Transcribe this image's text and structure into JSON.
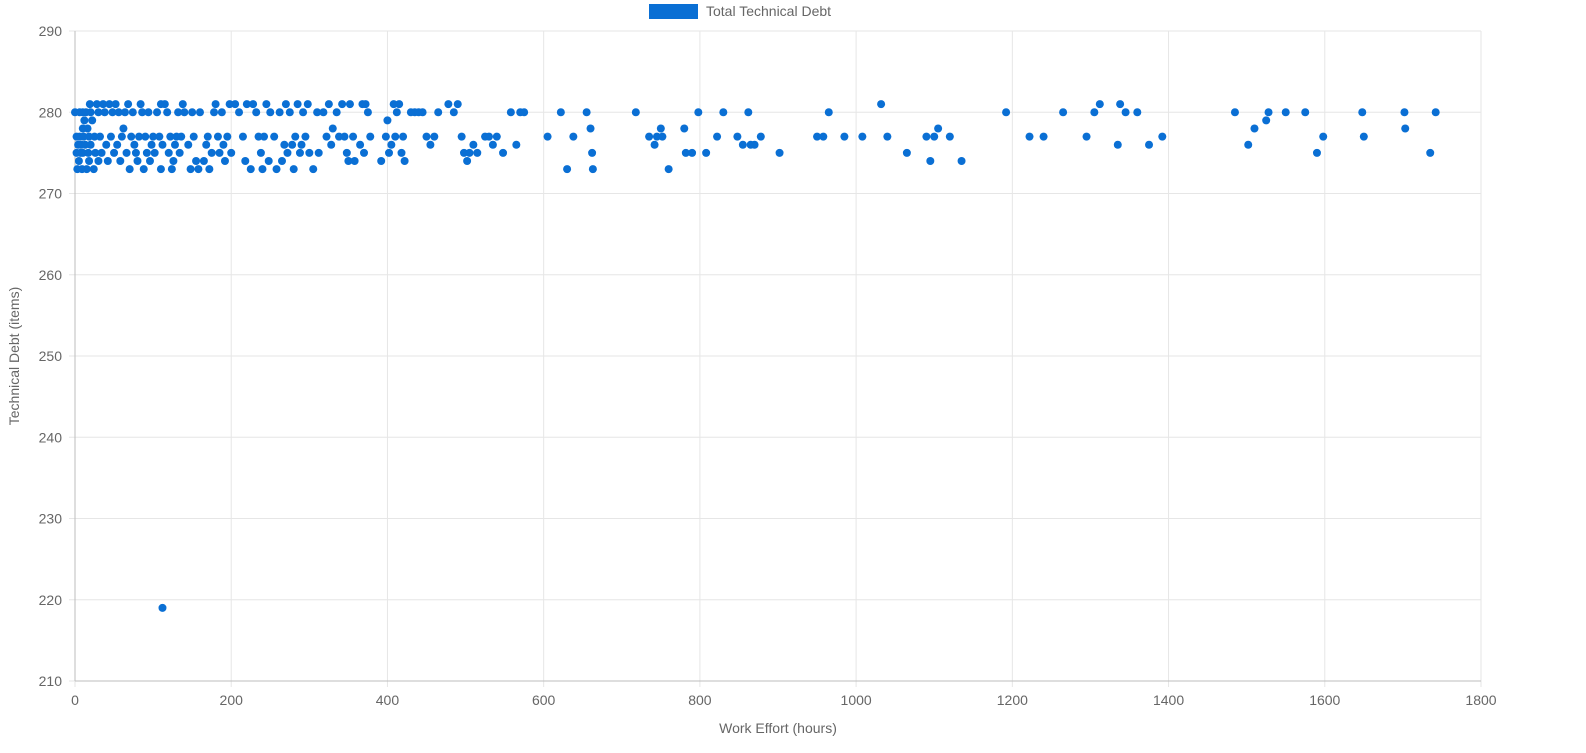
{
  "chart_data": {
    "type": "scatter",
    "title": "",
    "xlabel": "Work Effort (hours)",
    "ylabel": "Technical Debt (items)",
    "xlim": [
      0,
      1800
    ],
    "ylim": [
      210,
      290
    ],
    "x_ticks": [
      "0",
      "200",
      "400",
      "600",
      "800",
      "1000",
      "1200",
      "1400",
      "1600",
      "1800"
    ],
    "y_ticks": [
      "290",
      "280",
      "270",
      "260",
      "250",
      "240",
      "230",
      "220",
      "210"
    ],
    "grid": true,
    "legend_position": "top-center",
    "series": [
      {
        "name": "Total Technical Debt",
        "color": "#0a6fd4",
        "points": [
          [
            0,
            280
          ],
          [
            2,
            277
          ],
          [
            2,
            275
          ],
          [
            3,
            273
          ],
          [
            4,
            276
          ],
          [
            5,
            274
          ],
          [
            6,
            280
          ],
          [
            6,
            277
          ],
          [
            7,
            275
          ],
          [
            8,
            276
          ],
          [
            9,
            273
          ],
          [
            10,
            280
          ],
          [
            10,
            278
          ],
          [
            10,
            275
          ],
          [
            11,
            277
          ],
          [
            12,
            279
          ],
          [
            13,
            276
          ],
          [
            14,
            280
          ],
          [
            15,
            273
          ],
          [
            16,
            278
          ],
          [
            17,
            275
          ],
          [
            18,
            277
          ],
          [
            18,
            274
          ],
          [
            19,
            281
          ],
          [
            20,
            280
          ],
          [
            20,
            276
          ],
          [
            22,
            279
          ],
          [
            24,
            273
          ],
          [
            25,
            277
          ],
          [
            26,
            275
          ],
          [
            28,
            281
          ],
          [
            30,
            280
          ],
          [
            30,
            274
          ],
          [
            32,
            277
          ],
          [
            34,
            275
          ],
          [
            36,
            281
          ],
          [
            38,
            280
          ],
          [
            40,
            276
          ],
          [
            42,
            274
          ],
          [
            44,
            281
          ],
          [
            46,
            277
          ],
          [
            48,
            280
          ],
          [
            50,
            275
          ],
          [
            52,
            281
          ],
          [
            54,
            276
          ],
          [
            56,
            280
          ],
          [
            58,
            274
          ],
          [
            60,
            277
          ],
          [
            62,
            278
          ],
          [
            64,
            280
          ],
          [
            66,
            275
          ],
          [
            68,
            281
          ],
          [
            70,
            273
          ],
          [
            72,
            277
          ],
          [
            74,
            280
          ],
          [
            76,
            276
          ],
          [
            78,
            275
          ],
          [
            80,
            274
          ],
          [
            82,
            277
          ],
          [
            84,
            281
          ],
          [
            86,
            280
          ],
          [
            88,
            273
          ],
          [
            90,
            277
          ],
          [
            92,
            275
          ],
          [
            94,
            280
          ],
          [
            96,
            274
          ],
          [
            98,
            276
          ],
          [
            100,
            277
          ],
          [
            102,
            275
          ],
          [
            105,
            280
          ],
          [
            108,
            277
          ],
          [
            110,
            273
          ],
          [
            110,
            281
          ],
          [
            112,
            276
          ],
          [
            115,
            281
          ],
          [
            118,
            280
          ],
          [
            120,
            275
          ],
          [
            122,
            277
          ],
          [
            124,
            273
          ],
          [
            126,
            274
          ],
          [
            128,
            276
          ],
          [
            130,
            277
          ],
          [
            132,
            280
          ],
          [
            134,
            275
          ],
          [
            136,
            277
          ],
          [
            138,
            281
          ],
          [
            140,
            280
          ],
          [
            145,
            276
          ],
          [
            148,
            273
          ],
          [
            150,
            280
          ],
          [
            152,
            277
          ],
          [
            155,
            274
          ],
          [
            158,
            273
          ],
          [
            160,
            280
          ],
          [
            165,
            274
          ],
          [
            168,
            276
          ],
          [
            170,
            277
          ],
          [
            172,
            273
          ],
          [
            175,
            275
          ],
          [
            178,
            280
          ],
          [
            180,
            281
          ],
          [
            183,
            277
          ],
          [
            185,
            275
          ],
          [
            188,
            280
          ],
          [
            190,
            276
          ],
          [
            192,
            274
          ],
          [
            195,
            277
          ],
          [
            198,
            281
          ],
          [
            200,
            275
          ],
          [
            205,
            281
          ],
          [
            210,
            280
          ],
          [
            215,
            277
          ],
          [
            218,
            274
          ],
          [
            220,
            281
          ],
          [
            225,
            273
          ],
          [
            228,
            281
          ],
          [
            232,
            280
          ],
          [
            235,
            277
          ],
          [
            238,
            275
          ],
          [
            240,
            273
          ],
          [
            242,
            277
          ],
          [
            245,
            281
          ],
          [
            248,
            274
          ],
          [
            250,
            280
          ],
          [
            255,
            277
          ],
          [
            258,
            273
          ],
          [
            262,
            280
          ],
          [
            265,
            274
          ],
          [
            268,
            276
          ],
          [
            270,
            281
          ],
          [
            272,
            275
          ],
          [
            275,
            280
          ],
          [
            278,
            276
          ],
          [
            280,
            273
          ],
          [
            282,
            277
          ],
          [
            285,
            281
          ],
          [
            288,
            275
          ],
          [
            290,
            276
          ],
          [
            292,
            280
          ],
          [
            295,
            277
          ],
          [
            298,
            281
          ],
          [
            300,
            275
          ],
          [
            305,
            273
          ],
          [
            310,
            280
          ],
          [
            312,
            275
          ],
          [
            318,
            280
          ],
          [
            322,
            277
          ],
          [
            325,
            281
          ],
          [
            328,
            276
          ],
          [
            330,
            278
          ],
          [
            335,
            280
          ],
          [
            338,
            277
          ],
          [
            342,
            281
          ],
          [
            345,
            277
          ],
          [
            348,
            275
          ],
          [
            350,
            274
          ],
          [
            352,
            281
          ],
          [
            356,
            277
          ],
          [
            358,
            274
          ],
          [
            365,
            276
          ],
          [
            368,
            281
          ],
          [
            370,
            275
          ],
          [
            372,
            281
          ],
          [
            375,
            280
          ],
          [
            378,
            277
          ],
          [
            392,
            274
          ],
          [
            398,
            277
          ],
          [
            400,
            279
          ],
          [
            402,
            275
          ],
          [
            405,
            276
          ],
          [
            408,
            281
          ],
          [
            410,
            277
          ],
          [
            412,
            280
          ],
          [
            415,
            281
          ],
          [
            418,
            275
          ],
          [
            420,
            277
          ],
          [
            422,
            274
          ],
          [
            430,
            280
          ],
          [
            435,
            280
          ],
          [
            440,
            280
          ],
          [
            445,
            280
          ],
          [
            450,
            277
          ],
          [
            455,
            276
          ],
          [
            460,
            277
          ],
          [
            465,
            280
          ],
          [
            478,
            281
          ],
          [
            485,
            280
          ],
          [
            490,
            281
          ],
          [
            495,
            277
          ],
          [
            498,
            275
          ],
          [
            502,
            274
          ],
          [
            505,
            275
          ],
          [
            510,
            276
          ],
          [
            515,
            275
          ],
          [
            525,
            277
          ],
          [
            530,
            277
          ],
          [
            535,
            276
          ],
          [
            540,
            277
          ],
          [
            548,
            275
          ],
          [
            558,
            280
          ],
          [
            565,
            276
          ],
          [
            570,
            280
          ],
          [
            575,
            280
          ],
          [
            605,
            277
          ],
          [
            622,
            280
          ],
          [
            630,
            273
          ],
          [
            638,
            277
          ],
          [
            655,
            280
          ],
          [
            660,
            278
          ],
          [
            662,
            275
          ],
          [
            663,
            273
          ],
          [
            718,
            280
          ],
          [
            735,
            277
          ],
          [
            742,
            276
          ],
          [
            745,
            277
          ],
          [
            750,
            278
          ],
          [
            752,
            277
          ],
          [
            760,
            273
          ],
          [
            780,
            278
          ],
          [
            782,
            275
          ],
          [
            790,
            275
          ],
          [
            798,
            280
          ],
          [
            808,
            275
          ],
          [
            822,
            277
          ],
          [
            830,
            280
          ],
          [
            848,
            277
          ],
          [
            855,
            276
          ],
          [
            862,
            280
          ],
          [
            865,
            276
          ],
          [
            870,
            276
          ],
          [
            878,
            277
          ],
          [
            902,
            275
          ],
          [
            950,
            277
          ],
          [
            958,
            277
          ],
          [
            965,
            280
          ],
          [
            985,
            277
          ],
          [
            1008,
            277
          ],
          [
            1032,
            281
          ],
          [
            1040,
            277
          ],
          [
            1065,
            275
          ],
          [
            1090,
            277
          ],
          [
            1095,
            274
          ],
          [
            1100,
            277
          ],
          [
            1105,
            278
          ],
          [
            1120,
            277
          ],
          [
            1135,
            274
          ],
          [
            1192,
            280
          ],
          [
            1222,
            277
          ],
          [
            1240,
            277
          ],
          [
            1265,
            280
          ],
          [
            1295,
            277
          ],
          [
            1305,
            280
          ],
          [
            1312,
            281
          ],
          [
            1335,
            276
          ],
          [
            1338,
            281
          ],
          [
            1345,
            280
          ],
          [
            1360,
            280
          ],
          [
            1375,
            276
          ],
          [
            1392,
            277
          ],
          [
            1485,
            280
          ],
          [
            1502,
            276
          ],
          [
            1510,
            278
          ],
          [
            1525,
            279
          ],
          [
            1528,
            280
          ],
          [
            1550,
            280
          ],
          [
            1575,
            280
          ],
          [
            1590,
            275
          ],
          [
            1598,
            277
          ],
          [
            1648,
            280
          ],
          [
            1650,
            277
          ],
          [
            1702,
            280
          ],
          [
            1703,
            278
          ],
          [
            1735,
            275
          ],
          [
            1742,
            280
          ],
          [
            112,
            219
          ]
        ]
      }
    ]
  }
}
